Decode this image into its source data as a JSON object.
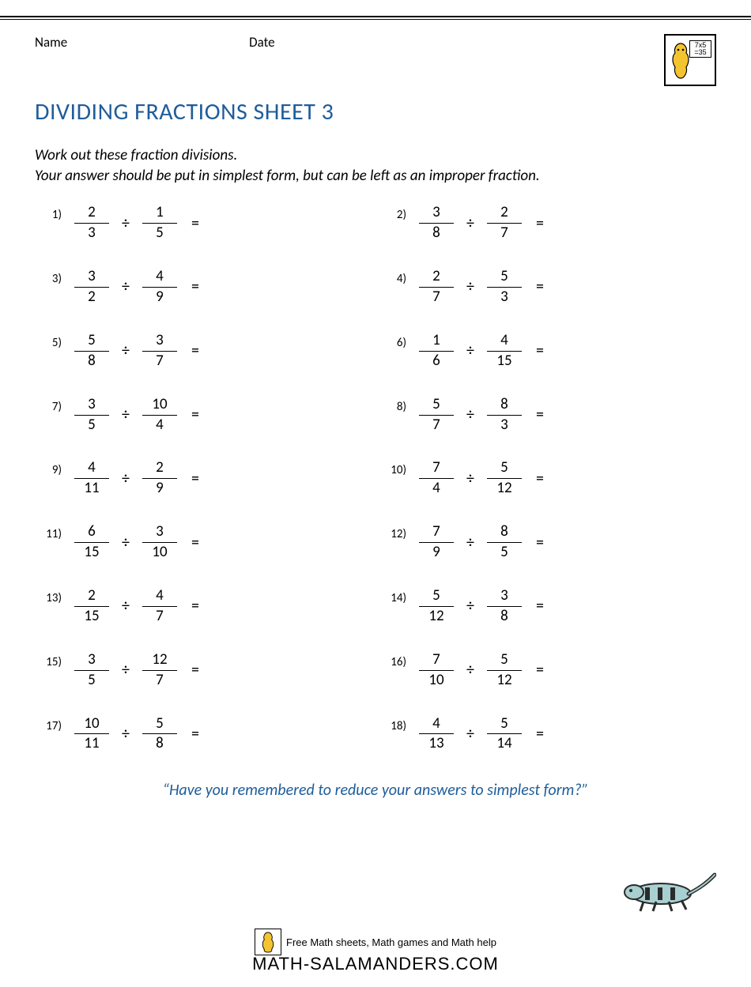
{
  "header": {
    "name_label": "Name",
    "date_label": "Date",
    "logo_text_top": "7x5",
    "logo_text_bottom": "=35"
  },
  "title": "DIVIDING FRACTIONS SHEET 3",
  "instructions": {
    "line1": "Work out these fraction divisions.",
    "line2": "Your answer should be put in simplest form, but can be left as an improper fraction."
  },
  "operator": "÷",
  "equals": "=",
  "problems": [
    {
      "n": "1)",
      "a_num": "2",
      "a_den": "3",
      "b_num": "1",
      "b_den": "5"
    },
    {
      "n": "2)",
      "a_num": "3",
      "a_den": "8",
      "b_num": "2",
      "b_den": "7"
    },
    {
      "n": "3)",
      "a_num": "3",
      "a_den": "2",
      "b_num": "4",
      "b_den": "9"
    },
    {
      "n": "4)",
      "a_num": "2",
      "a_den": "7",
      "b_num": "5",
      "b_den": "3"
    },
    {
      "n": "5)",
      "a_num": "5",
      "a_den": "8",
      "b_num": "3",
      "b_den": "7"
    },
    {
      "n": "6)",
      "a_num": "1",
      "a_den": "6",
      "b_num": "4",
      "b_den": "15"
    },
    {
      "n": "7)",
      "a_num": "3",
      "a_den": "5",
      "b_num": "10",
      "b_den": "4"
    },
    {
      "n": "8)",
      "a_num": "5",
      "a_den": "7",
      "b_num": "8",
      "b_den": "3"
    },
    {
      "n": "9)",
      "a_num": "4",
      "a_den": "11",
      "b_num": "2",
      "b_den": "9"
    },
    {
      "n": "10)",
      "a_num": "7",
      "a_den": "4",
      "b_num": "5",
      "b_den": "12"
    },
    {
      "n": "11)",
      "a_num": "6",
      "a_den": "15",
      "b_num": "3",
      "b_den": "10"
    },
    {
      "n": "12)",
      "a_num": "7",
      "a_den": "9",
      "b_num": "8",
      "b_den": "5"
    },
    {
      "n": "13)",
      "a_num": "2",
      "a_den": "15",
      "b_num": "4",
      "b_den": "7"
    },
    {
      "n": "14)",
      "a_num": "5",
      "a_den": "12",
      "b_num": "3",
      "b_den": "8"
    },
    {
      "n": "15)",
      "a_num": "3",
      "a_den": "5",
      "b_num": "12",
      "b_den": "7"
    },
    {
      "n": "16)",
      "a_num": "7",
      "a_den": "10",
      "b_num": "5",
      "b_den": "12"
    },
    {
      "n": "17)",
      "a_num": "10",
      "a_den": "11",
      "b_num": "5",
      "b_den": "8"
    },
    {
      "n": "18)",
      "a_num": "4",
      "a_den": "13",
      "b_num": "5",
      "b_den": "14"
    }
  ],
  "reminder": "“Have you remembered to reduce your answers to simplest form?”",
  "footer": {
    "tagline": "Free Math sheets, Math games and Math help",
    "url": "MATH-SALAMANDERS.COM"
  },
  "colors": {
    "title": "#1f5d9a",
    "text": "#000000",
    "background": "#ffffff",
    "lizard_body": "#a9d0d0",
    "lizard_dark": "#2b2b2b",
    "salamander_yellow": "#f4c430"
  }
}
